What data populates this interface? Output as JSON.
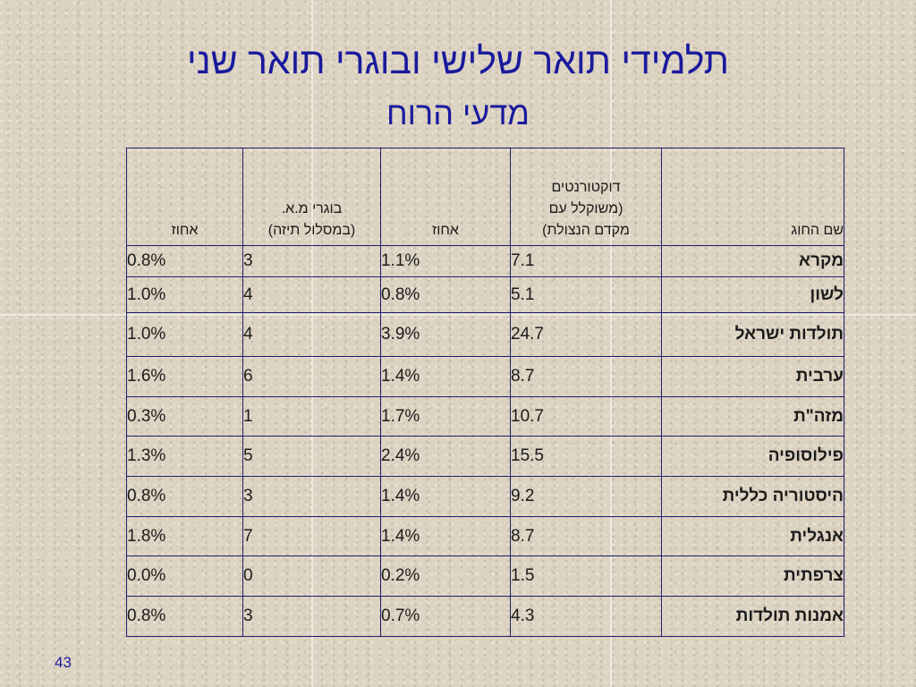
{
  "slide": {
    "title": "תלמידי תואר שלישי ובוגרי תואר שני",
    "subtitle": "מדעי הרוח",
    "page_number": "43"
  },
  "table": {
    "headers": {
      "department": "שם החוג",
      "doctoral_line1": "דוקטורנטים",
      "doctoral_line2": "(משוקלל עם",
      "doctoral_line3": "מקדם הנצולת)",
      "percent_a": "אחוז",
      "ma_line1": "בוגרי מ.א.",
      "ma_line2": "(במסלול תיזה)",
      "percent_b": "אחוז"
    },
    "rows": [
      {
        "department": "מקרא",
        "doctoral": "7.1",
        "percent_a": "1.1%",
        "ma_grads": "3",
        "percent_b": "0.8%"
      },
      {
        "department": "לשון",
        "doctoral": "5.1",
        "percent_a": "0.8%",
        "ma_grads": "4",
        "percent_b": "1.0%"
      },
      {
        "department": "תולדות ישראל",
        "doctoral": "24.7",
        "percent_a": "3.9%",
        "ma_grads": "4",
        "percent_b": "1.0%"
      },
      {
        "department": "ערבית",
        "doctoral": "8.7",
        "percent_a": "1.4%",
        "ma_grads": "6",
        "percent_b": "1.6%"
      },
      {
        "department": "מזה\"ת",
        "doctoral": "10.7",
        "percent_a": "1.7%",
        "ma_grads": "1",
        "percent_b": "0.3%"
      },
      {
        "department": "פילוסופיה",
        "doctoral": "15.5",
        "percent_a": "2.4%",
        "ma_grads": "5",
        "percent_b": "1.3%"
      },
      {
        "department": "היסטוריה כללית",
        "doctoral": "9.2",
        "percent_a": "1.4%",
        "ma_grads": "3",
        "percent_b": "0.8%"
      },
      {
        "department": "אנגלית",
        "doctoral": "8.7",
        "percent_a": "1.4%",
        "ma_grads": "7",
        "percent_b": "1.8%"
      },
      {
        "department": "צרפתית",
        "doctoral": "1.5",
        "percent_a": "0.2%",
        "ma_grads": "0",
        "percent_b": "0.0%"
      },
      {
        "department": "אמנות תולדות",
        "doctoral": "4.3",
        "percent_a": "0.7%",
        "ma_grads": "3",
        "percent_b": "0.8%"
      }
    ]
  },
  "colors": {
    "title": "#1a1a9e",
    "border": "#1d1d6e",
    "background": "#ddd3c2"
  }
}
